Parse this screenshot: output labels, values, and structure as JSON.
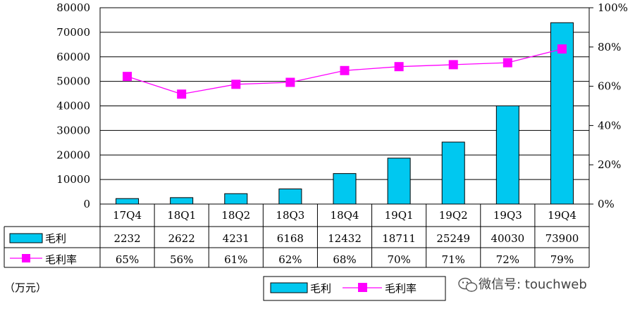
{
  "chart_data": {
    "type": "bar",
    "categories": [
      "17Q4",
      "18Q1",
      "18Q2",
      "18Q3",
      "18Q4",
      "19Q1",
      "19Q2",
      "19Q3",
      "19Q4"
    ],
    "series": [
      {
        "name": "毛利",
        "type": "bar",
        "axis": "left",
        "values": [
          2232,
          2622,
          4231,
          6168,
          12432,
          18711,
          25249,
          40030,
          73900
        ],
        "color": "#00c8f0"
      },
      {
        "name": "毛利率",
        "type": "line",
        "axis": "right",
        "values": [
          65,
          56,
          61,
          62,
          68,
          70,
          71,
          72,
          79
        ],
        "color": "#ff00ff"
      }
    ],
    "ylim_left": [
      0,
      80000
    ],
    "ylim_right": [
      0,
      100
    ],
    "yticks_left": [
      "0",
      "10000",
      "20000",
      "30000",
      "40000",
      "50000",
      "60000",
      "70000",
      "80000"
    ],
    "yticks_right": [
      "0%",
      "20%",
      "40%",
      "60%",
      "80%",
      "100%"
    ],
    "table": {
      "rows": [
        {
          "label": "毛利",
          "cells": [
            "2232",
            "2622",
            "4231",
            "6168",
            "12432",
            "18711",
            "25249",
            "40030",
            "73900"
          ]
        },
        {
          "label": "毛利率",
          "cells": [
            "65%",
            "56%",
            "61%",
            "62%",
            "68%",
            "70%",
            "71%",
            "72%",
            "79%"
          ]
        }
      ]
    },
    "unit_label": "（万元）",
    "legend": {
      "items": [
        "毛利",
        "毛利率"
      ],
      "position": "bottom"
    },
    "grid": true
  },
  "watermark": "微信号: touchweb"
}
